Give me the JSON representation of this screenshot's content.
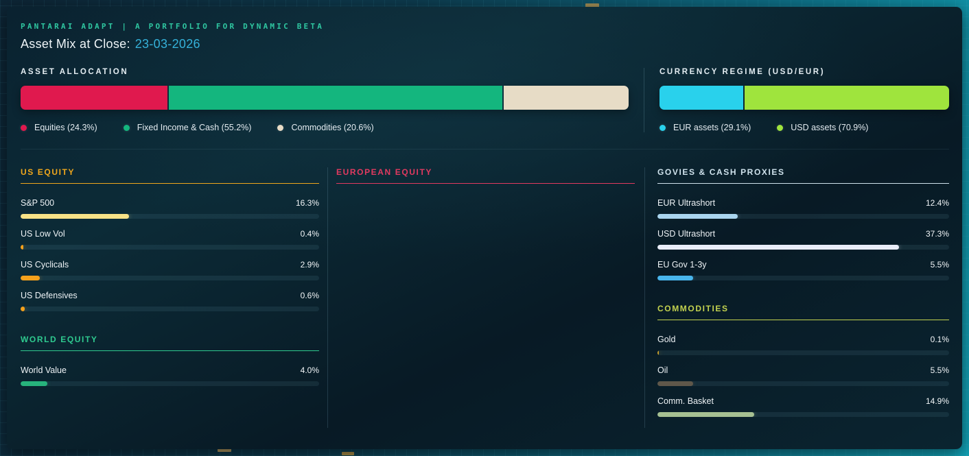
{
  "header": {
    "eyebrow": "PANTARAI ADAPT | A PORTFOLIO FOR DYNAMIC BETA",
    "title": "Asset Mix at Close:",
    "date": "23-03-2026"
  },
  "colors": {
    "accent_teal": "#2fc7a1",
    "date_cyan": "#35b1d9",
    "card_bg": "#0a2230",
    "background_teal": "#0e6b82"
  },
  "chart_data": [
    {
      "id": "asset_allocation",
      "type": "bar",
      "subtype": "stacked",
      "title": "ASSET ALLOCATION",
      "xlim": [
        0,
        100
      ],
      "series": [
        {
          "name": "Equities",
          "value": 24.3,
          "color": "#e0194e",
          "legend": "Equities (24.3%)"
        },
        {
          "name": "Fixed Income & Cash",
          "value": 55.2,
          "color": "#14b67e",
          "legend": "Fixed Income & Cash (55.2%)"
        },
        {
          "name": "Commodities",
          "value": 20.6,
          "color": "#e7dcc6",
          "legend": "Commodities (20.6%)"
        }
      ]
    },
    {
      "id": "currency_regime",
      "type": "bar",
      "subtype": "stacked",
      "title": "CURRENCY REGIME (USD/EUR)",
      "xlim": [
        0,
        100
      ],
      "series": [
        {
          "name": "EUR assets",
          "value": 29.1,
          "color": "#29d1ec",
          "legend": "EUR assets (29.1%)"
        },
        {
          "name": "USD assets",
          "value": 70.9,
          "color": "#9fe43d",
          "legend": "USD assets (70.9%)"
        }
      ]
    },
    {
      "id": "us_equity",
      "type": "bar",
      "subtype": "list",
      "column": 0,
      "title": "US EQUITY",
      "accent": "#f0a71c",
      "xlim": [
        0,
        45
      ],
      "categories": [
        "S&P 500",
        "US Low Vol",
        "US Cyclicals",
        "US Defensives"
      ],
      "values": [
        16.3,
        0.4,
        2.9,
        0.6
      ],
      "labels": [
        "16.3%",
        "0.4%",
        "2.9%",
        "0.6%"
      ],
      "bar_colors": [
        "#f8e287",
        "#f5a11c",
        "#f5a11c",
        "#f5a11c"
      ]
    },
    {
      "id": "world_equity",
      "type": "bar",
      "subtype": "list",
      "column": 0,
      "title": "WORLD EQUITY",
      "accent": "#2fcb90",
      "xlim": [
        0,
        45
      ],
      "categories": [
        "World Value"
      ],
      "values": [
        4.0
      ],
      "labels": [
        "4.0%"
      ],
      "bar_colors": [
        "#27b37c"
      ]
    },
    {
      "id": "european_equity",
      "type": "bar",
      "subtype": "list",
      "column": 1,
      "title": "EUROPEAN EQUITY",
      "accent": "#e23a60",
      "xlim": [
        0,
        45
      ],
      "categories": [],
      "values": [],
      "labels": [],
      "bar_colors": []
    },
    {
      "id": "govies_cash_proxies",
      "type": "bar",
      "subtype": "list",
      "column": 2,
      "title": "GOVIES & CASH PROXIES",
      "accent": "#cfe2ec",
      "xlim": [
        0,
        45
      ],
      "categories": [
        "EUR Ultrashort",
        "USD Ultrashort",
        "EU Gov 1-3y"
      ],
      "values": [
        12.4,
        37.3,
        5.5
      ],
      "labels": [
        "12.4%",
        "37.3%",
        "5.5%"
      ],
      "bar_colors": [
        "#a9d4ee",
        "#e9edf9",
        "#49b5ec"
      ]
    },
    {
      "id": "commodities",
      "type": "bar",
      "subtype": "list",
      "column": 2,
      "title": "COMMODITIES",
      "accent": "#c3d24f",
      "xlim": [
        0,
        45
      ],
      "categories": [
        "Gold",
        "Oil",
        "Comm. Basket"
      ],
      "values": [
        0.1,
        5.5,
        14.9
      ],
      "labels": [
        "0.1%",
        "5.5%",
        "14.9%"
      ],
      "bar_colors": [
        "#c79f2c",
        "#5f574a",
        "#a6c092"
      ]
    }
  ]
}
